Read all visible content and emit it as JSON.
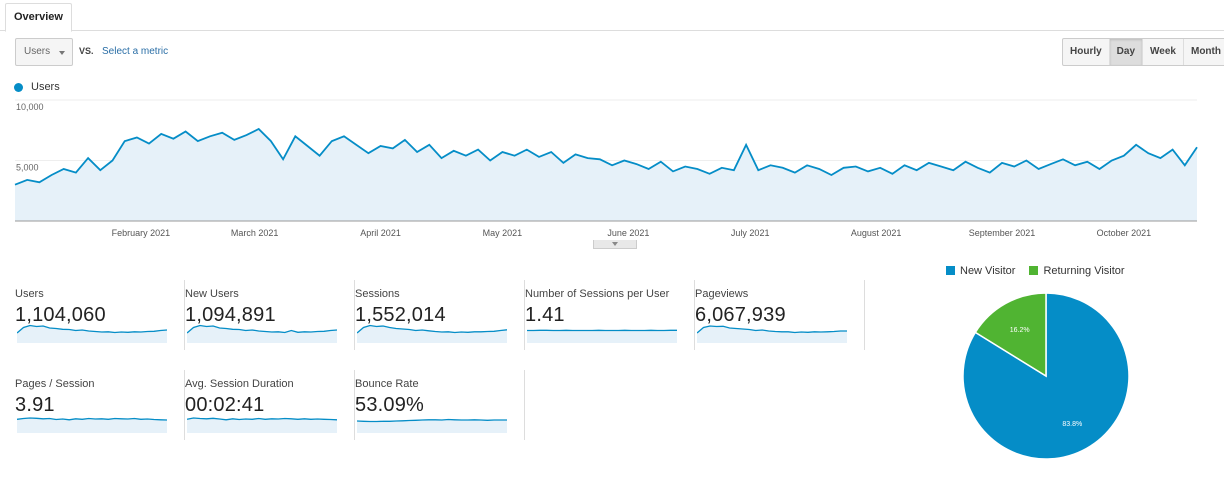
{
  "tabs": [
    {
      "label": "Overview",
      "active": true
    }
  ],
  "toolbar": {
    "metric_select": "Users",
    "vs_label": "VS.",
    "compare_link": "Select a metric",
    "granularity": [
      {
        "label": "Hourly",
        "active": false
      },
      {
        "label": "Day",
        "active": true
      },
      {
        "label": "Week",
        "active": false
      },
      {
        "label": "Month",
        "active": false
      }
    ]
  },
  "chart_data": [
    {
      "type": "area",
      "series": [
        {
          "name": "Users",
          "color": "#058dc7",
          "values": [
            3000,
            3400,
            3200,
            3800,
            4300,
            4000,
            5200,
            4200,
            5000,
            6600,
            6900,
            6400,
            7200,
            6800,
            7400,
            6600,
            7000,
            7300,
            6700,
            7100,
            7600,
            6600,
            5100,
            7000,
            6200,
            5400,
            6600,
            7000,
            6300,
            5600,
            6200,
            6000,
            6700,
            5700,
            6300,
            5200,
            5800,
            5400,
            5900,
            5000,
            5700,
            5400,
            5900,
            5300,
            5700,
            4800,
            5500,
            5200,
            5100,
            4600,
            5000,
            4700,
            4300,
            4900,
            4100,
            4500,
            4300,
            3900,
            4400,
            4200,
            6300,
            4200,
            4600,
            4400,
            4000,
            4600,
            4300,
            3800,
            4400,
            4500,
            4100,
            4400,
            3900,
            4600,
            4200,
            4800,
            4500,
            4200,
            4900,
            4400,
            4000,
            4800,
            4500,
            5000,
            4300,
            4700,
            5100,
            4600,
            4900,
            4300,
            5000,
            5400,
            6300,
            5600,
            5200,
            5900,
            4600,
            6100
          ]
        }
      ],
      "date_range": [
        "2021-01-01",
        "2021-10-19"
      ],
      "ylim": [
        0,
        10000
      ],
      "yticks": [
        "10,000",
        "5,000"
      ],
      "ytick_values": [
        10000,
        5000
      ],
      "xticks": [
        "February 2021",
        "March 2021",
        "April 2021",
        "May 2021",
        "June 2021",
        "July 2021",
        "August 2021",
        "September 2021",
        "October 2021"
      ],
      "xtick_dates": [
        "2021-02-01",
        "2021-03-01",
        "2021-04-01",
        "2021-05-01",
        "2021-06-01",
        "2021-07-01",
        "2021-08-01",
        "2021-09-01",
        "2021-10-01"
      ],
      "grid": true,
      "legend": "top-left"
    },
    {
      "type": "pie",
      "legend": "top",
      "slices": [
        {
          "name": "New Visitor",
          "value": 83.8,
          "label": "83.8%",
          "color": "#058dc7"
        },
        {
          "name": "Returning Visitor",
          "value": 16.2,
          "label": "16.2%",
          "color": "#50b432"
        }
      ]
    }
  ],
  "metrics": [
    {
      "label": "Users",
      "value": "1,104,060",
      "spark": [
        40,
        62,
        70,
        66,
        68,
        60,
        58,
        55,
        54,
        50,
        52,
        48,
        46,
        44,
        45,
        42,
        44,
        43,
        45,
        44,
        46,
        47,
        50,
        52
      ]
    },
    {
      "label": "New Users",
      "value": "1,094,891",
      "spark": [
        40,
        62,
        70,
        66,
        68,
        60,
        58,
        55,
        54,
        50,
        52,
        48,
        46,
        44,
        45,
        42,
        50,
        43,
        45,
        44,
        46,
        47,
        50,
        52
      ]
    },
    {
      "label": "Sessions",
      "value": "1,552,014",
      "spark": [
        40,
        62,
        70,
        66,
        68,
        62,
        58,
        56,
        54,
        50,
        52,
        49,
        46,
        44,
        45,
        42,
        44,
        43,
        45,
        45,
        46,
        47,
        50,
        53
      ]
    },
    {
      "label": "Number of Sessions per User",
      "value": "1.41",
      "spark": [
        50,
        50,
        51,
        51,
        50,
        50,
        51,
        50,
        50,
        50,
        50,
        51,
        50,
        50,
        50,
        51,
        50,
        50,
        50,
        51,
        50,
        50,
        51,
        51
      ]
    },
    {
      "label": "Pageviews",
      "value": "6,067,939",
      "spark": [
        40,
        62,
        68,
        66,
        67,
        60,
        58,
        56,
        54,
        50,
        52,
        48,
        46,
        45,
        45,
        42,
        44,
        43,
        45,
        44,
        45,
        46,
        48,
        48
      ]
    },
    {
      "label": "Pages / Session",
      "value": "3.91",
      "spark": [
        55,
        58,
        60,
        59,
        57,
        58,
        54,
        56,
        53,
        57,
        55,
        58,
        56,
        57,
        55,
        58,
        57,
        56,
        58,
        55,
        56,
        54,
        53,
        52
      ]
    },
    {
      "label": "Avg. Session Duration",
      "value": "00:02:41",
      "spark": [
        55,
        60,
        58,
        57,
        59,
        56,
        53,
        57,
        54,
        56,
        55,
        58,
        55,
        57,
        56,
        58,
        57,
        55,
        57,
        55,
        56,
        55,
        54,
        53
      ]
    },
    {
      "label": "Bounce Rate",
      "value": "53.09%",
      "spark": [
        48,
        47,
        46,
        46,
        47,
        47,
        48,
        49,
        50,
        51,
        52,
        53,
        53,
        52,
        54,
        53,
        52,
        52,
        53,
        52,
        51,
        52,
        52,
        52
      ]
    }
  ]
}
